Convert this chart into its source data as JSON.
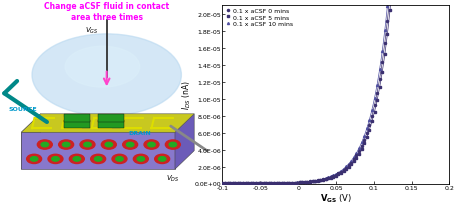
{
  "title": "Change aCSF fluid in contact\narea three times",
  "title_color": "#FF00FF",
  "xlabel": "V_{GS} (V)",
  "ylabel": "I_{DS} (nA)",
  "xlim": [
    -0.1,
    0.2
  ],
  "ylim": [
    0.0,
    2.1e-05
  ],
  "legend": [
    {
      "label": "0.1 x aCSF 0 mins",
      "marker": "o",
      "color": "#3B3070"
    },
    {
      "label": "0.1 x aCSF 5 mins",
      "marker": "s",
      "color": "#3B3070"
    },
    {
      "label": "0.1 x aCSF 10 mins",
      "marker": "^",
      "color": "#7070C0"
    }
  ],
  "curve_color": "#3B3070",
  "curve_color2": "#5050A0",
  "background": "#FFFFFF",
  "yticks": [
    0.0,
    2e-06,
    4e-06,
    6e-06,
    8e-06,
    1e-05,
    1.2e-05,
    1.4e-05,
    1.6e-05,
    1.8e-05,
    2e-05
  ],
  "ytick_labels": [
    "0.0E+00",
    "2.0E-06",
    "4.0E-06",
    "6.0E-06",
    "8.0E-06",
    "1.0E-05",
    "1.2E-05",
    "1.4E-05",
    "1.6E-05",
    "1.8E-05",
    "2.0E-05"
  ],
  "xticks": [
    -0.1,
    -0.05,
    0,
    0.05,
    0.1,
    0.15,
    0.2
  ],
  "xtick_labels": [
    "-0.1",
    "-0.05",
    "0",
    "0.05",
    "0.1",
    "0.15",
    "0.2"
  ]
}
